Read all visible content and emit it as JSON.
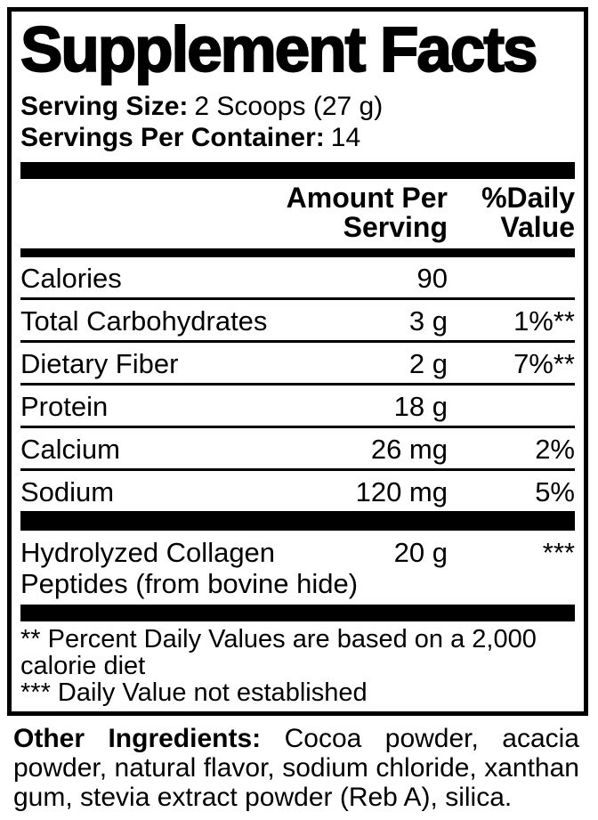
{
  "colors": {
    "text": "#000000",
    "background": "#ffffff"
  },
  "label": {
    "title": "Supplement Facts",
    "serving_size_label": "Serving Size:",
    "serving_size_value": "2 Scoops (27 g)",
    "servings_per_container_label": "Servings Per Container:",
    "servings_per_container_value": "14",
    "columns": {
      "amount_line1": "Amount Per",
      "amount_line2": "Serving",
      "dv_line1": "%Daily",
      "dv_line2": "Value"
    },
    "rows": [
      {
        "name": "Calories",
        "amount": "90",
        "dv": ""
      },
      {
        "name": "Total Carbohydrates",
        "amount": "3 g",
        "dv": "1%**"
      },
      {
        "name": "Dietary Fiber",
        "amount": "2 g",
        "dv": "7%**"
      },
      {
        "name": "Protein",
        "amount": "18 g",
        "dv": ""
      },
      {
        "name": "Calcium",
        "amount": "26 mg",
        "dv": "2%"
      },
      {
        "name": "Sodium",
        "amount": "120 mg",
        "dv": "5%"
      }
    ],
    "collagen_row": {
      "name_line1": "Hydrolyzed Collagen",
      "name_line2": "Peptides (from bovine hide)",
      "amount": "20 g",
      "dv": "***"
    },
    "footnotes": [
      "** Percent Daily Values are based on a 2,000 calorie diet",
      "*** Daily Value not established"
    ]
  },
  "other_ingredients": {
    "label": "Other Ingredients:",
    "text": "Cocoa powder, acacia powder, natural flavor, sodium chloride, xanthan gum, stevia extract powder (Reb A), silica."
  }
}
